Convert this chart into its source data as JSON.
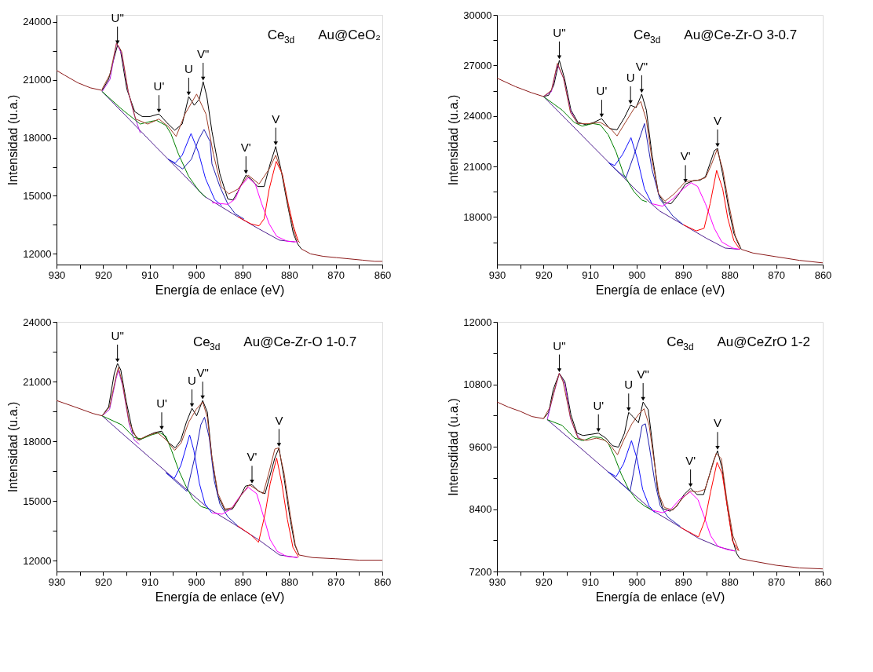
{
  "chart_data": [
    {
      "type": "line",
      "xlabel": "Energía de enlace (eV)",
      "ylabel": "Intensidad (u.a.)",
      "xlim": [
        930,
        860
      ],
      "xticks": [
        930,
        {
          "value": 925,
          "label": null
        },
        920,
        {
          "value": 915,
          "label": null
        },
        910,
        {
          "value": 905,
          "label": null
        },
        900,
        {
          "value": 895,
          "label": null
        },
        890,
        {
          "value": 885,
          "label": null
        },
        880,
        {
          "value": 875,
          "label": null
        },
        870,
        {
          "value": 865,
          "label": null
        },
        860
      ],
      "ylim": [
        11450,
        24350
      ],
      "yticks": [
        12000,
        {
          "value": 13500,
          "label": null
        },
        15000,
        {
          "value": 16500,
          "label": null
        },
        18000,
        {
          "value": 19500,
          "label": null
        },
        21000,
        {
          "value": 22500,
          "label": null
        },
        24000
      ],
      "series": [
        {
          "color": "#8b1a1a",
          "x": [
            930,
            928.2,
            925.4,
            922.7,
            920.2
          ],
          "values": [
            21485,
            21225,
            20840,
            20580,
            20450
          ]
        },
        {
          "color": "#000000",
          "x": [
            920.2,
            918.8,
            917.7,
            916.9,
            916.3,
            914.9,
            913.2,
            911.6,
            909.9,
            908.0,
            906.0,
            904.6,
            903.0,
            901.6,
            900.4,
            899.3,
            898.5,
            897.7,
            896.6,
            894.9,
            893.2,
            892.1,
            891.0,
            889.3,
            888.2,
            886.8,
            885.4,
            884.1,
            882.9,
            881.8,
            880.4,
            879.1,
            878.2,
            877.4
          ],
          "values": [
            20450,
            21030,
            22065,
            22775,
            22580,
            20520,
            19355,
            19100,
            19100,
            19230,
            18710,
            18390,
            18710,
            20130,
            19680,
            20000,
            20900,
            20130,
            18325,
            16130,
            14840,
            14780,
            15230,
            16070,
            15870,
            15480,
            15480,
            16650,
            17550,
            16390,
            14580,
            13035,
            12520,
            12260
          ]
        },
        {
          "color": "#8b1a1a",
          "x": [
            877.4,
            875.4,
            872.7,
            869.9,
            867.1,
            864.3,
            861.6,
            860
          ],
          "values": [
            12260,
            12000,
            11875,
            11810,
            11745,
            11680,
            11615,
            11615
          ]
        },
        {
          "color": "#502090",
          "x": [
            920.2,
            914.3,
            908.8,
            903.2,
            898.2,
            892.1,
            886.5,
            882.1,
            878.8
          ],
          "values": [
            20390,
            18940,
            17570,
            16210,
            14970,
            14070,
            13290,
            12710,
            12620
          ]
        },
        {
          "color": "#b020e0",
          "x": [
            920.2,
            918.5,
            917.1,
            916.0,
            914.6,
            913.2,
            912.0
          ],
          "values": [
            20390,
            21030,
            22900,
            22320,
            20390,
            19100,
            18250
          ]
        },
        {
          "color": "#008000",
          "x": [
            920.2,
            916.0,
            912.0,
            909.9,
            908.5,
            906.5,
            905.4,
            903.8,
            901.6,
            899.3,
            897.9
          ],
          "values": [
            20390,
            19480,
            18710,
            18840,
            18900,
            18640,
            18200,
            17160,
            16000,
            15230,
            14920
          ]
        },
        {
          "color": "#1010ff",
          "x": [
            906.0,
            904.5,
            903.0,
            901.1,
            899.5,
            898.0,
            896.0,
            894.5
          ],
          "values": [
            16890,
            16700,
            17100,
            18220,
            17250,
            15900,
            14800,
            14500
          ]
        },
        {
          "color": "#2020b0",
          "x": [
            906.0,
            902.9,
            901.0,
            899.5,
            898.3,
            897.0,
            896.6,
            894.9,
            893.2,
            891.6,
            889.7
          ],
          "values": [
            16890,
            16390,
            16900,
            17900,
            18430,
            17800,
            16650,
            15480,
            14580,
            14070,
            13800
          ]
        },
        {
          "color": "#ff00ff",
          "x": [
            896.6,
            893.2,
            891.6,
            890.5,
            888.8,
            887.3,
            885.9,
            884.3,
            882.7,
            880.4,
            878.2
          ],
          "values": [
            14650,
            14560,
            14840,
            15480,
            15940,
            15610,
            14580,
            13550,
            12910,
            12650,
            12620
          ]
        },
        {
          "color": "#ff0000",
          "x": [
            891.0,
            888.2,
            886.5,
            885.4,
            884.3,
            882.8,
            881.5,
            880.2,
            879.1,
            878.0
          ],
          "values": [
            13910,
            13550,
            13450,
            13810,
            15360,
            16780,
            16130,
            14580,
            13420,
            12620
          ]
        },
        {
          "color": "#a0402a",
          "x": [
            920.2,
            918.5,
            917.1,
            916.0,
            914.6,
            913.0,
            910.4,
            908.0,
            906.0,
            904.3,
            902.4,
            899.9,
            897.9,
            896.3,
            894.6,
            893.0,
            891.0,
            888.8,
            886.5,
            884.3,
            882.9,
            881.5,
            879.9,
            878.5,
            877.7
          ],
          "values": [
            20520,
            21290,
            22900,
            22450,
            20390,
            18970,
            18710,
            18970,
            18580,
            18070,
            19230,
            20260,
            19230,
            17160,
            15480,
            15100,
            15350,
            16070,
            15610,
            16390,
            17100,
            16130,
            14070,
            12780,
            12580
          ]
        }
      ],
      "annotations": [
        "Ce$_{3d}$",
        "Au@CeO₂",
        {
          "text": "U\"",
          "x": 916.9,
          "y": 22775
        },
        {
          "text": "U'",
          "x": 908.0,
          "y": 19230
        },
        {
          "text": "U",
          "x": 901.6,
          "y": 20130
        },
        {
          "text": "V\"",
          "x": 898.5,
          "y": 20900
        },
        {
          "text": "V'",
          "x": 889.3,
          "y": 16070
        },
        {
          "text": "V",
          "x": 882.9,
          "y": 17550
        }
      ]
    },
    {
      "type": "line",
      "xlabel": "Energía de enlace (eV)",
      "ylabel": "Intensidad (u.a.)",
      "xlim": [
        930,
        860
      ],
      "xticks": [
        930,
        {
          "value": 925,
          "label": null
        },
        920,
        {
          "value": 915,
          "label": null
        },
        910,
        {
          "value": 905,
          "label": null
        },
        900,
        {
          "value": 895,
          "label": null
        },
        890,
        {
          "value": 885,
          "label": null
        },
        880,
        {
          "value": 875,
          "label": null
        },
        870,
        {
          "value": 865,
          "label": null
        },
        860
      ],
      "ylim": [
        15180,
        30000
      ],
      "yticks": [
        {
          "value": 16500,
          "label": null
        },
        18000,
        {
          "value": 19500,
          "label": null
        },
        21000,
        {
          "value": 22500,
          "label": null
        },
        24000,
        {
          "value": 25500,
          "label": null
        },
        27000,
        {
          "value": 28500,
          "label": null
        },
        30000
      ],
      "series": [
        {
          "color": "#8b1a1a",
          "x": [
            930,
            926,
            922.5,
            920.0
          ],
          "values": [
            26250,
            25740,
            25375,
            25155
          ]
        },
        {
          "color": "#000000",
          "x": [
            920.0,
            918.9,
            917.8,
            916.6,
            915.5,
            914.1,
            912.6,
            910.8,
            909.2,
            907.5,
            905.8,
            904.2,
            902.6,
            901.3,
            900.1,
            898.9,
            897.9,
            896.7,
            895.3,
            894.2,
            892.6,
            891.1,
            889.5,
            887.6,
            886.4,
            885.2,
            884.1,
            883.3,
            882.6,
            881.5,
            880.1,
            879.1,
            878.2,
            877.5
          ],
          "values": [
            25155,
            25230,
            25815,
            27305,
            26250,
            24350,
            23620,
            23475,
            23620,
            23840,
            23255,
            23180,
            23910,
            24640,
            24500,
            25300,
            24350,
            21720,
            19380,
            18870,
            18790,
            19300,
            19960,
            20180,
            20180,
            20400,
            21280,
            21940,
            22080,
            20550,
            18350,
            17035,
            16450,
            16085
          ]
        },
        {
          "color": "#8b1a1a",
          "x": [
            877.5,
            875,
            870,
            865,
            860
          ],
          "values": [
            16085,
            15865,
            15645,
            15430,
            15280
          ]
        },
        {
          "color": "#502090",
          "x": [
            920.0,
            915.0,
            910.0,
            905.0,
            900.0,
            895.0,
            890.0,
            885.0,
            881.0,
            878.0
          ],
          "values": [
            25155,
            23765,
            22360,
            20970,
            19570,
            18350,
            17550,
            16740,
            16160,
            16085
          ]
        },
        {
          "color": "#b020e0",
          "x": [
            920.0,
            918.3,
            917.0,
            915.7,
            914.2,
            912.6
          ],
          "values": [
            25155,
            25440,
            27050,
            26250,
            24300,
            23500
          ]
        },
        {
          "color": "#008000",
          "x": [
            920.0,
            916.0,
            913.4,
            911.7,
            909.4,
            907.8,
            906.1,
            904.4,
            902.8,
            900.6,
            898.9,
            897.8
          ],
          "values": [
            25155,
            24350,
            23620,
            23400,
            23550,
            23475,
            22890,
            21860,
            20550,
            19520,
            19010,
            18900
          ]
        },
        {
          "color": "#1010ff",
          "x": [
            906.0,
            904.7,
            903.0,
            901.2,
            899.8,
            898.3,
            896.7
          ],
          "values": [
            21220,
            21060,
            21720,
            22710,
            21425,
            19670,
            18790
          ]
        },
        {
          "color": "#2020b0",
          "x": [
            906.0,
            904.0,
            902.3,
            900.5,
            898.3,
            896.7,
            895.0,
            892.2,
            890.0
          ],
          "values": [
            21220,
            20700,
            20330,
            21720,
            23550,
            20840,
            19080,
            18060,
            17550
          ]
        },
        {
          "color": "#ff00ff",
          "x": [
            896.7,
            894.4,
            892.2,
            890.0,
            888.3,
            886.9,
            885.2,
            883.3,
            881.7,
            879.4,
            877.8
          ],
          "values": [
            18790,
            18645,
            19080,
            19670,
            20040,
            19820,
            18790,
            17330,
            16520,
            16160,
            16085
          ]
        },
        {
          "color": "#ff0000",
          "x": [
            890.0,
            887.2,
            885.5,
            884.2,
            882.8,
            881.5,
            880.4,
            879.1,
            877.8
          ],
          "values": [
            17550,
            17180,
            17330,
            18790,
            20770,
            19670,
            17920,
            16600,
            16085
          ]
        },
        {
          "color": "#a0402a",
          "x": [
            920.0,
            918.3,
            917.0,
            915.7,
            914.2,
            912.6,
            910.0,
            907.8,
            905.6,
            904.2,
            902.4,
            900.6,
            899.1,
            897.9,
            896.7,
            895.3,
            893.9,
            891.9,
            889.5,
            887.0,
            885.2,
            883.9,
            882.7,
            881.5,
            880.1,
            878.8,
            877.7
          ],
          "values": [
            25155,
            25520,
            27130,
            26250,
            24200,
            23550,
            23550,
            23620,
            23255,
            22815,
            23620,
            24420,
            24860,
            23765,
            21425,
            19380,
            18940,
            19380,
            20110,
            20180,
            20330,
            21130,
            22010,
            20840,
            18650,
            16890,
            16230
          ]
        }
      ],
      "annotations": [
        "Ce$_{3d}$",
        "Au@Ce-Zr-O 3-0.7",
        {
          "text": "U\"",
          "x": 916.6,
          "y": 27305
        },
        {
          "text": "U'",
          "x": 907.5,
          "y": 23840
        },
        {
          "text": "U",
          "x": 901.3,
          "y": 24640
        },
        {
          "text": "V\"",
          "x": 898.9,
          "y": 25300
        },
        {
          "text": "V'",
          "x": 889.5,
          "y": 19960
        },
        {
          "text": "V",
          "x": 882.6,
          "y": 22080
        }
      ]
    },
    {
      "type": "line",
      "xlabel": "Energía de enlace (eV)",
      "ylabel": "Intensidad (u.a.)",
      "xlim": [
        930,
        860
      ],
      "xticks": [
        930,
        {
          "value": 925,
          "label": null
        },
        920,
        {
          "value": 915,
          "label": null
        },
        910,
        {
          "value": 905,
          "label": null
        },
        900,
        {
          "value": 895,
          "label": null
        },
        890,
        {
          "value": 885,
          "label": null
        },
        880,
        {
          "value": 875,
          "label": null
        },
        870,
        {
          "value": 865,
          "label": null
        },
        860
      ],
      "ylim": [
        11460,
        24000
      ],
      "yticks": [
        12000,
        {
          "value": 13500,
          "label": null
        },
        15000,
        {
          "value": 16500,
          "label": null
        },
        18000,
        {
          "value": 19500,
          "label": null
        },
        21000,
        {
          "value": 22500,
          "label": null
        },
        24000
      ],
      "series": [
        {
          "color": "#8b1a1a",
          "x": [
            930,
            926.1,
            922.2,
            920.2
          ],
          "values": [
            20050,
            19730,
            19400,
            19280
          ]
        },
        {
          "color": "#000000",
          "x": [
            920.2,
            918.8,
            917.6,
            916.9,
            916.2,
            915.0,
            913.6,
            912.2,
            910.8,
            908.9,
            907.4,
            905.9,
            904.5,
            903.3,
            902.1,
            900.9,
            899.9,
            898.6,
            897.6,
            896.6,
            895.3,
            893.8,
            892.2,
            890.8,
            889.4,
            888.0,
            886.6,
            885.2,
            884.0,
            883.1,
            882.2,
            881.1,
            879.8,
            878.8,
            877.9
          ],
          "values": [
            19280,
            19730,
            21400,
            21910,
            21590,
            19980,
            18440,
            18060,
            18250,
            18440,
            18510,
            17930,
            17670,
            18060,
            18960,
            19660,
            19280,
            20050,
            19470,
            17160,
            15240,
            14530,
            14600,
            15110,
            15750,
            15820,
            15490,
            15370,
            16390,
            17160,
            17670,
            16130,
            14080,
            12800,
            12290
          ]
        },
        {
          "color": "#8b1a1a",
          "x": [
            877.9,
            875,
            870,
            865,
            860
          ],
          "values": [
            12290,
            12160,
            12100,
            12030,
            12030
          ]
        },
        {
          "color": "#502090",
          "x": [
            920.2,
            915.0,
            910.0,
            905.0,
            900.0,
            897.2,
            892.2,
            886.6,
            882.1,
            878.2
          ],
          "values": [
            19280,
            18210,
            17190,
            16180,
            15160,
            14600,
            13890,
            13060,
            12290,
            12160
          ]
        },
        {
          "color": "#b020e0",
          "x": [
            920.2,
            918.6,
            917.2,
            916.7,
            915.8,
            914.4,
            913.3,
            912.2
          ],
          "values": [
            19280,
            19600,
            21150,
            21570,
            20800,
            18880,
            18060,
            17850
          ]
        },
        {
          "color": "#008000",
          "x": [
            920.2,
            916.0,
            913.3,
            911.7,
            909.6,
            907.8,
            906.5,
            905.3,
            903.7,
            902.2,
            900.7,
            898.9,
            897.2
          ],
          "values": [
            19280,
            18830,
            18190,
            18120,
            18320,
            18440,
            18250,
            17550,
            16520,
            15750,
            15110,
            14720,
            14600
          ]
        },
        {
          "color": "#1010ff",
          "x": [
            906.5,
            904.7,
            903.3,
            901.4,
            900.5,
            899.3,
            898.1,
            896.6
          ],
          "values": [
            16420,
            16130,
            16780,
            18320,
            17550,
            15880,
            14850,
            14400
          ]
        },
        {
          "color": "#2020b0",
          "x": [
            906.5,
            902.0,
            900.2,
            899.0,
            898.2,
            897.2,
            896.1,
            894.9,
            893.2,
            891.1
          ],
          "values": [
            16420,
            15490,
            17290,
            18830,
            19210,
            18190,
            16010,
            14850,
            14210,
            13760
          ]
        },
        {
          "color": "#ff00ff",
          "x": [
            896.6,
            894.4,
            892.5,
            890.6,
            888.8,
            887.0,
            885.5,
            884.1,
            882.6,
            880.6,
            878.2
          ],
          "values": [
            14400,
            14340,
            14600,
            15240,
            15690,
            15370,
            14210,
            13060,
            12480,
            12220,
            12160
          ]
        },
        {
          "color": "#ff0000",
          "x": [
            891.1,
            888.3,
            886.6,
            885.2,
            884.1,
            882.7,
            881.6,
            880.4,
            879.2,
            878.0
          ],
          "values": [
            13760,
            13310,
            12930,
            14340,
            15880,
            17160,
            15880,
            14080,
            12670,
            12190
          ]
        },
        {
          "color": "#a0402a",
          "x": [
            920.2,
            918.6,
            917.2,
            916.7,
            915.8,
            914.4,
            912.6,
            910.0,
            908.3,
            906.4,
            904.6,
            903.2,
            901.6,
            900.0,
            898.6,
            897.6,
            896.6,
            895.3,
            893.8,
            892.2,
            890.3,
            888.6,
            886.9,
            885.6,
            884.4,
            883.1,
            882.3,
            881.1,
            879.8,
            878.7,
            877.9
          ],
          "values": [
            19280,
            19730,
            21270,
            21720,
            20880,
            18960,
            18060,
            18320,
            18440,
            18060,
            17550,
            17930,
            18960,
            19600,
            19980,
            19210,
            17160,
            15370,
            14600,
            14660,
            15300,
            15820,
            15560,
            15370,
            16390,
            17610,
            17670,
            16390,
            14340,
            12800,
            12290
          ]
        }
      ],
      "annotations": [
        "Ce$_{3d}$",
        "Au@Ce-Zr-O 1-0.7",
        {
          "text": "U\"",
          "x": 916.9,
          "y": 21910
        },
        {
          "text": "U'",
          "x": 907.4,
          "y": 18510
        },
        {
          "text": "U",
          "x": 900.9,
          "y": 19660
        },
        {
          "text": "V\"",
          "x": 898.6,
          "y": 20050
        },
        {
          "text": "V'",
          "x": 888.0,
          "y": 15820
        },
        {
          "text": "V",
          "x": 882.2,
          "y": 17670
        }
      ]
    },
    {
      "type": "line",
      "xlabel": "Energía de enlace (eV)",
      "ylabel": "Intensdidad (u.a.)",
      "xlim": [
        930,
        860
      ],
      "xticks": [
        930,
        {
          "value": 925,
          "label": null
        },
        920,
        {
          "value": 915,
          "label": null
        },
        910,
        {
          "value": 905,
          "label": null
        },
        900,
        {
          "value": 895,
          "label": null
        },
        890,
        {
          "value": 885,
          "label": null
        },
        880,
        {
          "value": 875,
          "label": null
        },
        870,
        {
          "value": 865,
          "label": null
        },
        860
      ],
      "ylim": [
        7200,
        12000
      ],
      "yticks": [
        7200,
        {
          "value": 7800,
          "label": null
        },
        8400,
        {
          "value": 9000,
          "label": null
        },
        9600,
        {
          "value": 10200,
          "label": null
        },
        10800,
        {
          "value": 11400,
          "label": null
        },
        12000
      ],
      "series": [
        {
          "color": "#8b1a1a",
          "x": [
            930,
            927.5,
            925.0,
            922.5,
            920.0
          ],
          "values": [
            10460,
            10360,
            10280,
            10180,
            10140
          ]
        },
        {
          "color": "#000000",
          "x": [
            920.0,
            918.9,
            917.9,
            916.6,
            915.4,
            914.1,
            912.8,
            911.5,
            909.6,
            908.2,
            906.6,
            905.2,
            903.9,
            902.6,
            901.7,
            900.8,
            899.6,
            898.6,
            897.5,
            896.6,
            895.5,
            894.4,
            892.8,
            891.3,
            889.8,
            888.4,
            887.0,
            885.6,
            884.3,
            883.4,
            882.6,
            881.6,
            880.4,
            879.3,
            878.5,
            877.8
          ],
          "values": [
            10140,
            10260,
            10700,
            11010,
            10850,
            10210,
            9860,
            9815,
            9840,
            9860,
            9765,
            9620,
            9590,
            9860,
            10260,
            10180,
            10060,
            10460,
            10310,
            9670,
            8780,
            8410,
            8360,
            8460,
            8680,
            8800,
            8680,
            8680,
            9070,
            9345,
            9520,
            9170,
            8380,
            7790,
            7545,
            7450
          ]
        },
        {
          "color": "#8b1a1a",
          "x": [
            877.8,
            875,
            870,
            865,
            860
          ],
          "values": [
            7450,
            7400,
            7320,
            7270,
            7250
          ]
        },
        {
          "color": "#502090",
          "x": [
            919.2,
            914.2,
            909.4,
            905.0,
            900.0,
            896.7,
            892.2,
            886.7,
            882.2,
            878.9
          ],
          "values": [
            10120,
            9740,
            9370,
            9030,
            8640,
            8380,
            8140,
            7840,
            7670,
            7595
          ]
        },
        {
          "color": "#b020e0",
          "x": [
            919.2,
            918.0,
            916.6,
            915.4,
            914.2,
            913.0,
            911.9
          ],
          "values": [
            10120,
            10555,
            11010,
            10800,
            10140,
            9860,
            9715
          ]
        },
        {
          "color": "#008000",
          "x": [
            919.2,
            916.0,
            913.3,
            911.5,
            909.4,
            907.6,
            906.1,
            904.8,
            903.3,
            901.7,
            900.0,
            898.3,
            896.7
          ],
          "values": [
            10120,
            10010,
            9765,
            9715,
            9790,
            9775,
            9670,
            9420,
            9075,
            8780,
            8580,
            8460,
            8380
          ]
        },
        {
          "color": "#1010ff",
          "x": [
            906.1,
            904.4,
            902.8,
            901.1,
            899.9,
            898.7,
            897.3,
            896.1
          ],
          "values": [
            9115,
            9025,
            9270,
            9715,
            9370,
            8780,
            8460,
            8335
          ]
        },
        {
          "color": "#2020b0",
          "x": [
            906.1,
            901.4,
            900.1,
            898.8,
            898.1,
            897.2,
            896.1,
            894.9,
            893.2,
            890.6
          ],
          "values": [
            9115,
            8740,
            9370,
            10010,
            10040,
            9570,
            8930,
            8460,
            8240,
            8065
          ]
        },
        {
          "color": "#ff00ff",
          "x": [
            896.7,
            894.4,
            892.5,
            890.6,
            888.5,
            886.8,
            885.5,
            884.1,
            882.6,
            880.5,
            878.9
          ],
          "values": [
            8380,
            8330,
            8410,
            8600,
            8730,
            8580,
            8260,
            7890,
            7690,
            7620,
            7595
          ]
        },
        {
          "color": "#ff0000",
          "x": [
            890.6,
            887.8,
            886.7,
            885.3,
            884.1,
            882.7,
            881.6,
            880.4,
            879.4,
            878.2
          ],
          "values": [
            8050,
            7915,
            7865,
            8190,
            8730,
            9300,
            9075,
            8380,
            7790,
            7605
          ]
        },
        {
          "color": "#a0402a",
          "x": [
            920.0,
            918.6,
            917.3,
            916.6,
            915.8,
            914.2,
            912.6,
            910.8,
            908.6,
            906.7,
            905.3,
            904.1,
            902.8,
            901.0,
            899.5,
            898.4,
            897.3,
            896.3,
            895.2,
            894.0,
            892.2,
            890.2,
            888.5,
            886.9,
            885.3,
            884.1,
            882.9,
            881.8,
            880.6,
            879.3,
            878.0
          ],
          "values": [
            10140,
            10360,
            10800,
            11010,
            10850,
            10160,
            9765,
            9720,
            9765,
            9720,
            9590,
            9445,
            9720,
            10040,
            10230,
            10330,
            10010,
            9370,
            8680,
            8430,
            8380,
            8600,
            8750,
            8730,
            8780,
            9120,
            9470,
            9370,
            8580,
            7890,
            7595
          ]
        }
      ],
      "annotations": [
        "Ce$_{3d}$",
        "Au@CeZrO 1-2",
        {
          "text": "U\"",
          "x": 916.6,
          "y": 11010
        },
        {
          "text": "U'",
          "x": 908.2,
          "y": 9860
        },
        {
          "text": "U",
          "x": 901.7,
          "y": 10260
        },
        {
          "text": "V\"",
          "x": 898.6,
          "y": 10460
        },
        {
          "text": "V'",
          "x": 888.4,
          "y": 8800
        },
        {
          "text": "V",
          "x": 882.6,
          "y": 9520
        }
      ]
    }
  ]
}
